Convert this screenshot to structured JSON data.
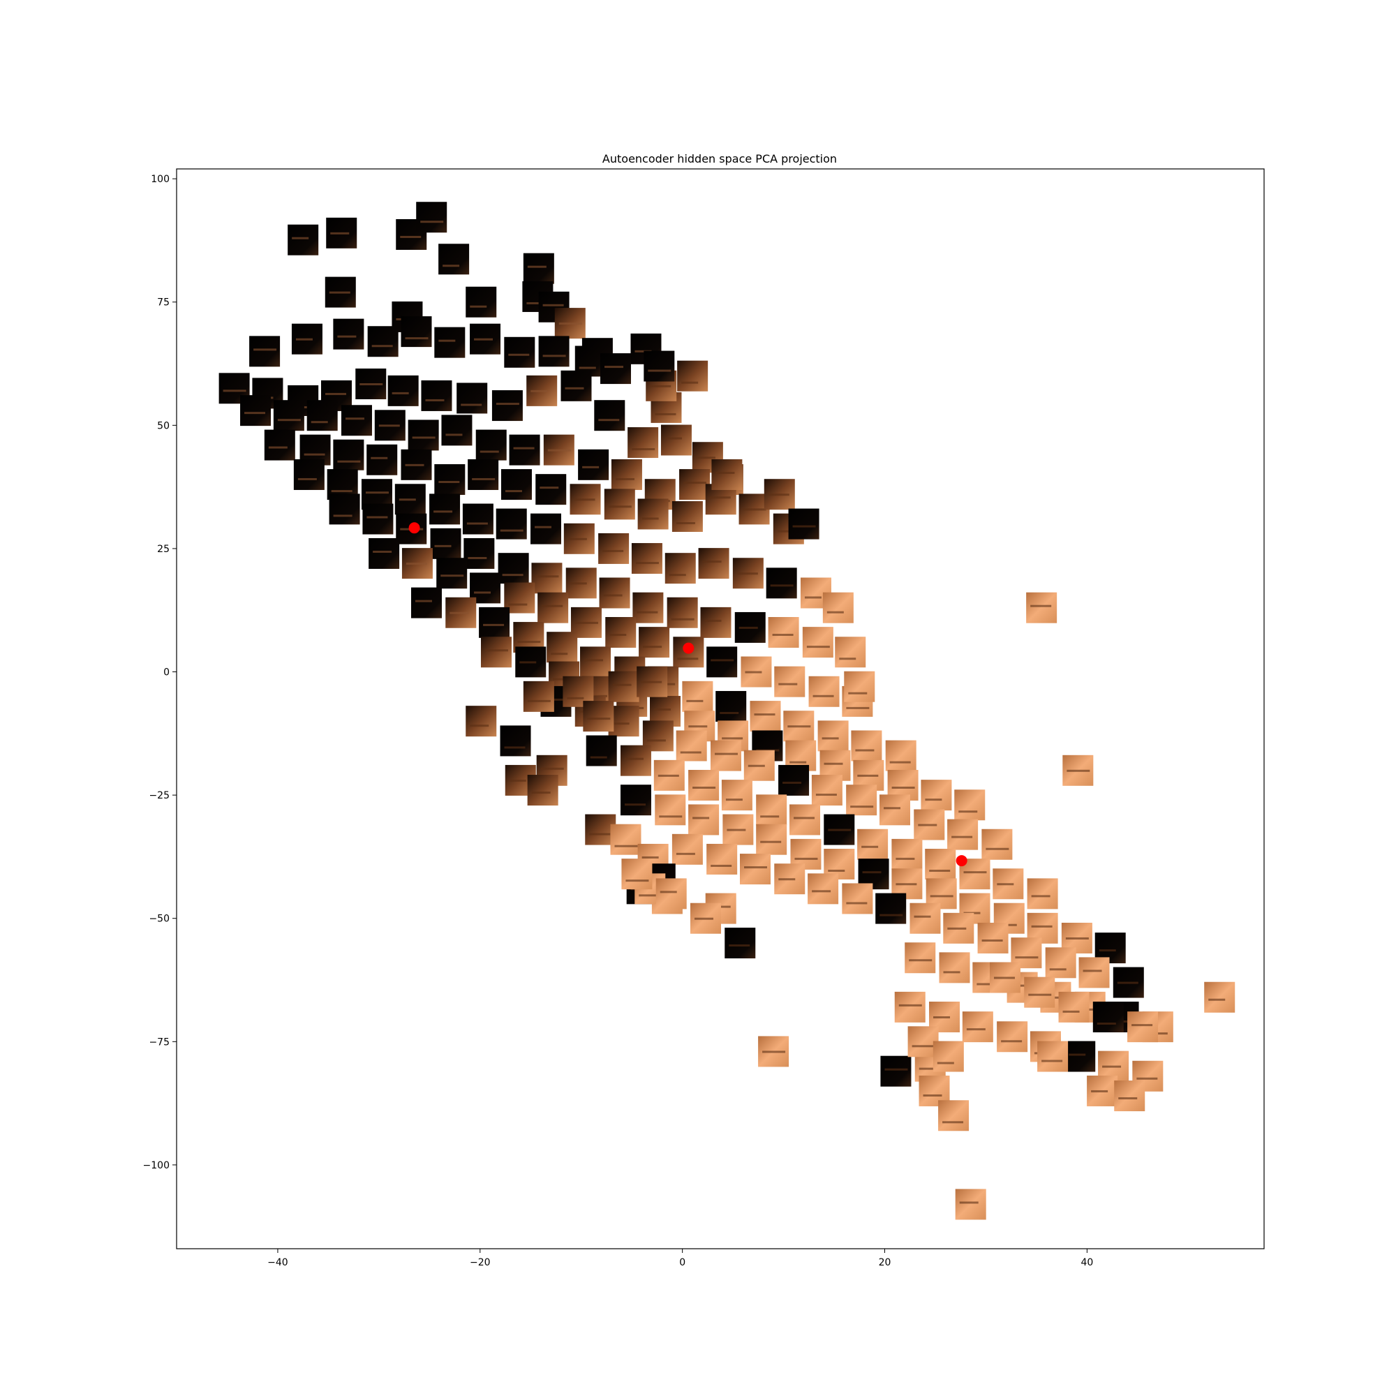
{
  "chart_data": {
    "type": "scatter",
    "title": "Autoencoder hidden space PCA projection",
    "xlabel": "",
    "ylabel": "",
    "xlim": [
      -50,
      57.5
    ],
    "ylim": [
      -117,
      102
    ],
    "x_ticks": [
      -40,
      -20,
      0,
      20,
      40
    ],
    "y_ticks": [
      -100,
      -75,
      -50,
      -25,
      0,
      25,
      50,
      75,
      100
    ],
    "x_tick_labels": [
      "−40",
      "−20",
      "0",
      "20",
      "40"
    ],
    "y_tick_labels": [
      "−100",
      "−75",
      "−50",
      "−25",
      "0",
      "25",
      "50",
      "75",
      "100"
    ],
    "grid": false,
    "colors": {
      "dark_patch": "#050302",
      "light_patch": "#f0a670",
      "highlight_point": "#ff0000"
    },
    "highlight_points": {
      "x": [
        -26.5,
        0.6,
        27.6
      ],
      "y": [
        29.2,
        4.8,
        -38.3
      ]
    },
    "image_patches": {
      "description_free": true,
      "x": [
        -37.5,
        -33.7,
        -26.8,
        -24.8,
        -22.6,
        -14.2,
        -33.8,
        -27.2,
        -19.9,
        -14.3,
        -12.7,
        -11.1,
        -3.6,
        -8.4,
        -1.6,
        -41.3,
        -37.1,
        -33.0,
        -29.6,
        -26.3,
        -23.0,
        -19.5,
        -16.1,
        -12.7,
        -9.1,
        -6.6,
        -2.1,
        -44.3,
        -41.0,
        -37.5,
        -34.2,
        -30.8,
        -27.6,
        -24.3,
        -20.8,
        -17.3,
        -13.9,
        -10.5,
        -7.2,
        -3.9,
        -0.6,
        2.5,
        -42.2,
        -38.9,
        -35.6,
        -32.2,
        -28.9,
        -25.6,
        -22.3,
        -18.9,
        -15.6,
        -12.2,
        -8.8,
        -5.5,
        -2.2,
        1.2,
        4.5,
        -39.8,
        -36.3,
        -33.0,
        -29.7,
        -26.3,
        -23.0,
        -19.7,
        -16.4,
        -13.0,
        -9.6,
        -6.2,
        -2.9,
        0.5,
        3.8,
        7.1,
        10.5,
        -36.9,
        -33.6,
        -30.2,
        -26.9,
        -23.5,
        -20.2,
        -16.9,
        -13.5,
        -10.2,
        -6.8,
        -3.5,
        -0.2,
        3.1,
        6.5,
        9.8,
        13.2,
        -33.4,
        -30.1,
        -26.8,
        -23.4,
        -20.1,
        -16.7,
        -13.4,
        -10.0,
        -6.7,
        -3.4,
        0.0,
        3.3,
        6.7,
        10.0,
        13.4,
        16.6,
        -29.5,
        -26.2,
        -22.8,
        -19.5,
        -16.1,
        -12.8,
        -9.5,
        -6.1,
        -2.8,
        0.6,
        3.9,
        7.3,
        10.6,
        14.0,
        17.3,
        -25.3,
        -21.9,
        -18.6,
        -15.2,
        -11.9,
        -8.6,
        -5.2,
        -1.9,
        1.5,
        4.8,
        8.2,
        11.5,
        14.9,
        18.2,
        21.6,
        -18.4,
        -15.0,
        -11.7,
        -8.4,
        -5.0,
        -1.7,
        1.7,
        5.0,
        8.4,
        11.7,
        15.1,
        18.4,
        21.8,
        25.1,
        28.4,
        -12.5,
        -9.1,
        -5.8,
        -2.4,
        0.9,
        4.3,
        7.6,
        11.0,
        14.3,
        17.7,
        21.0,
        24.4,
        27.7,
        31.1,
        -8.0,
        -4.6,
        -1.3,
        2.1,
        5.4,
        8.8,
        12.1,
        15.5,
        18.8,
        22.2,
        25.5,
        28.9,
        32.2,
        35.6,
        -4.6,
        -1.2,
        2.1,
        5.5,
        8.8,
        12.2,
        15.5,
        18.9,
        22.2,
        25.6,
        28.9,
        32.3,
        35.6,
        39.0,
        42.3,
        0.5,
        3.9,
        7.2,
        10.6,
        13.9,
        17.3,
        20.6,
        24.0,
        27.3,
        30.7,
        34.0,
        37.4,
        40.7,
        44.1,
        23.5,
        26.9,
        30.2,
        33.6,
        36.9,
        40.3,
        43.6,
        47.0,
        22.5,
        25.9,
        29.2,
        32.6,
        35.9,
        39.3,
        42.6,
        46.0,
        -2.3,
        1.0,
        4.4,
        9.6,
        12.0,
        15.4,
        17.5,
        35.5,
        39.1,
        53.1,
        -19.9,
        -16.5,
        -12.9,
        -16.0,
        -13.8,
        -8.1,
        -5.6,
        -2.9,
        -4.0,
        -1.5,
        -14.2,
        -10.3,
        -5.8,
        -3.0,
        -8.3,
        -2.2,
        -3.2,
        3.8,
        9.0,
        24.5,
        24.9,
        26.8,
        21.1,
        41.5,
        44.2,
        36.6,
        -4.5,
        -1.1,
        2.3,
        5.7,
        23.8,
        26.3,
        28.5,
        31.9,
        35.3,
        38.7,
        42.1,
        45.5
      ],
      "y": [
        87.6,
        89.0,
        88.7,
        92.2,
        83.7,
        81.8,
        77.0,
        72.0,
        75.0,
        76.1,
        74.0,
        70.7,
        65.5,
        64.6,
        53.6,
        65.0,
        67.5,
        68.5,
        67.0,
        69.0,
        66.8,
        67.5,
        64.8,
        65.0,
        63.0,
        61.5,
        58.0,
        57.5,
        56.5,
        55.0,
        56.0,
        58.4,
        57.0,
        56.0,
        55.5,
        54.0,
        57.0,
        58.0,
        52.0,
        46.5,
        47.0,
        43.5,
        53.0,
        52.0,
        52.0,
        51.0,
        50.0,
        48.0,
        49.0,
        46.0,
        45.0,
        45.0,
        42.0,
        40.0,
        36.0,
        38.0,
        39.0,
        46.0,
        45.0,
        44.0,
        43.0,
        42.0,
        39.0,
        40.0,
        38.0,
        37.0,
        35.0,
        34.0,
        32.0,
        31.5,
        35.0,
        33.0,
        29.0,
        40.0,
        38.0,
        36.0,
        35.0,
        33.0,
        31.0,
        30.0,
        29.0,
        27.0,
        25.0,
        23.0,
        21.0,
        22.0,
        20.0,
        18.0,
        16.0,
        33.0,
        31.0,
        29.0,
        26.0,
        24.0,
        21.0,
        19.0,
        18.0,
        16.0,
        13.0,
        12.0,
        10.0,
        9.0,
        8.0,
        6.0,
        4.0,
        24.0,
        22.0,
        20.0,
        17.0,
        15.0,
        13.0,
        10.0,
        8.0,
        6.0,
        4.0,
        2.0,
        0.0,
        -2.0,
        -4.0,
        -6.0,
        14.0,
        12.0,
        10.0,
        7.0,
        5.0,
        2.0,
        0.0,
        -2.0,
        -5.0,
        -7.0,
        -9.0,
        -11.0,
        -13.0,
        -15.0,
        -17.0,
        4.0,
        2.0,
        -1.0,
        -4.0,
        -6.0,
        -8.0,
        -11.0,
        -13.0,
        -15.0,
        -17.0,
        -19.0,
        -21.0,
        -23.0,
        -25.0,
        -27.0,
        -6.0,
        -8.0,
        -10.0,
        -13.0,
        -15.0,
        -17.0,
        -19.0,
        -22.0,
        -24.0,
        -26.0,
        -28.0,
        -31.0,
        -33.0,
        -35.0,
        -16.0,
        -18.0,
        -21.0,
        -23.0,
        -25.0,
        -28.0,
        -30.0,
        -32.0,
        -35.0,
        -37.0,
        -39.0,
        -41.0,
        -43.0,
        -45.0,
        -26.0,
        -28.0,
        -30.0,
        -32.0,
        -34.0,
        -37.0,
        -39.0,
        -41.0,
        -43.0,
        -45.0,
        -48.0,
        -50.0,
        -52.0,
        -54.0,
        -56.0,
        -36.0,
        -38.0,
        -40.0,
        -42.0,
        -44.0,
        -46.0,
        -48.0,
        -50.0,
        -52.0,
        -54.0,
        -57.0,
        -59.0,
        -61.0,
        -63.0,
        -58.0,
        -60.0,
        -62.0,
        -64.0,
        -66.0,
        -68.0,
        -70.0,
        -72.0,
        -68.0,
        -70.0,
        -72.0,
        -74.0,
        -76.0,
        -78.0,
        -80.0,
        -82.0,
        62.0,
        60.0,
        40.0,
        36.0,
        30.0,
        13.0,
        -3.0,
        13.0,
        -20.0,
        -66.0,
        -10.0,
        -14.0,
        -20.0,
        -22.0,
        -24.0,
        -32.0,
        -34.0,
        -38.0,
        -44.0,
        -46.0,
        -5.0,
        -4.0,
        -3.0,
        -2.0,
        -9.0,
        -42.0,
        -44.0,
        -48.0,
        -77.0,
        -80.0,
        -85.0,
        -90.0,
        -81.0,
        -85.0,
        -86.0,
        -78.0,
        -41.0,
        -45.0,
        -50.0,
        -55.0,
        -75.0,
        -78.0,
        -108.0,
        -62.0,
        -65.0,
        -68.0,
        -70.0,
        -72.0
      ]
    }
  }
}
